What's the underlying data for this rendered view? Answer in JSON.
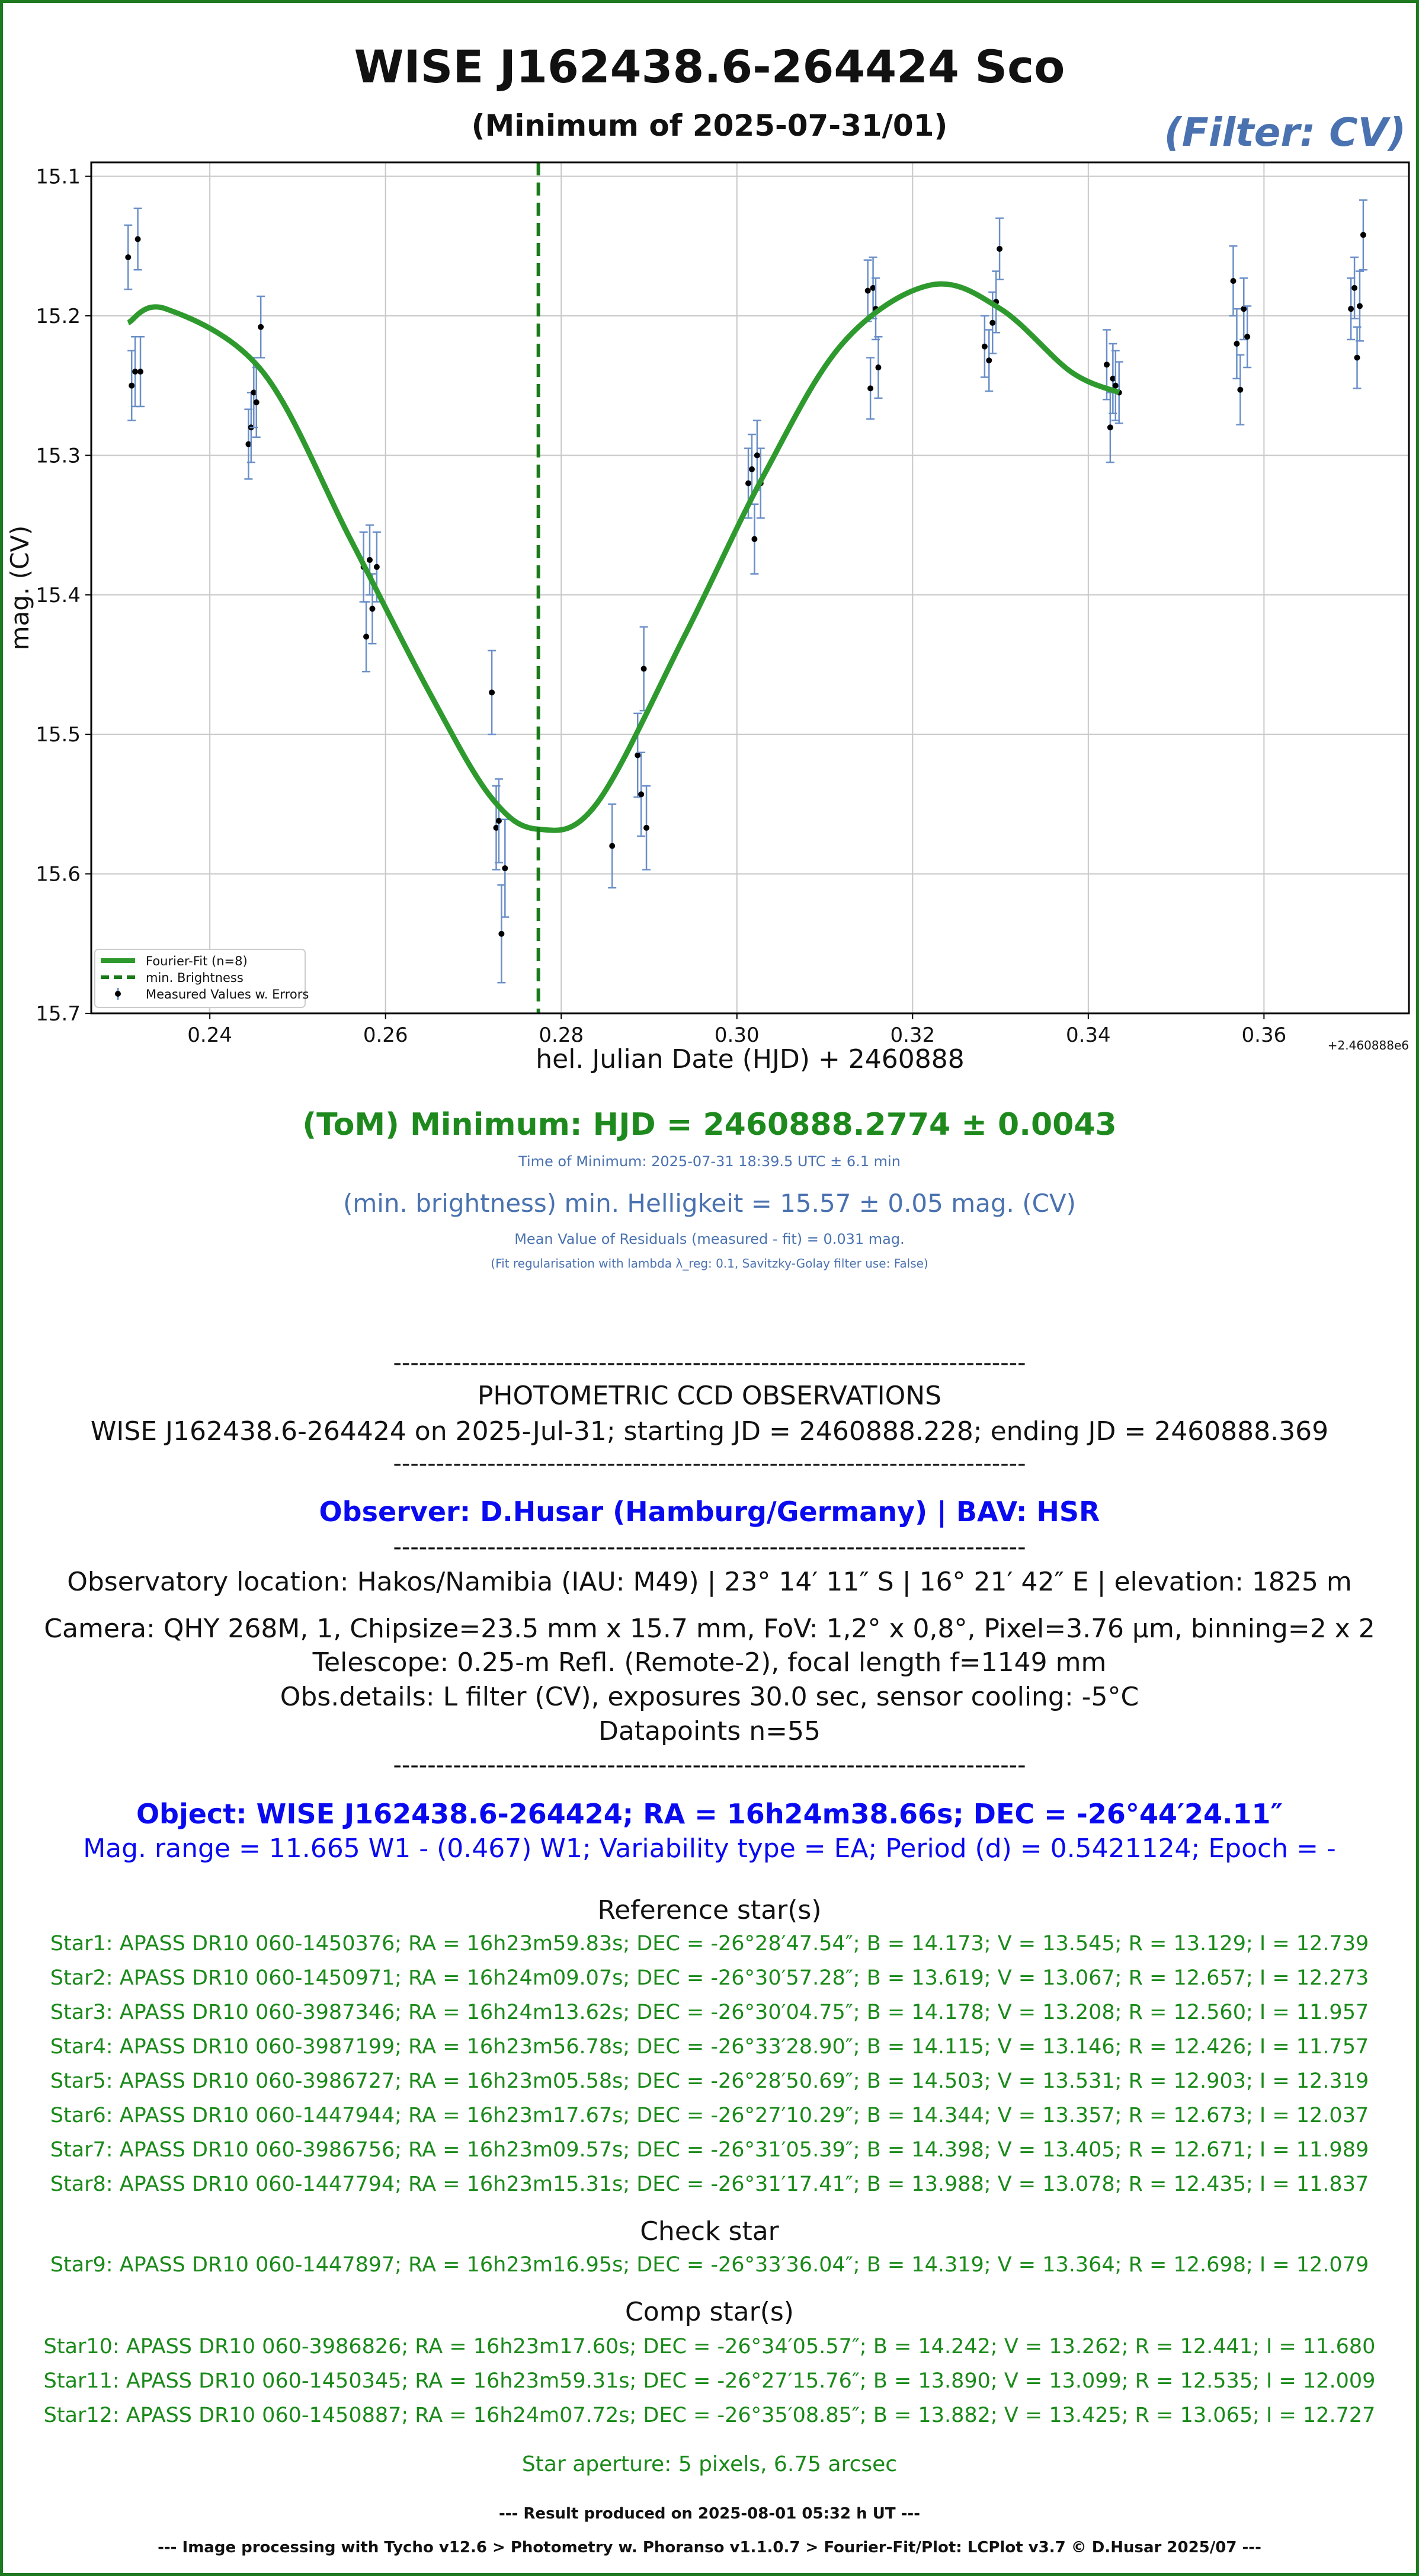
{
  "header": {
    "title": "WISE J162438.6-264424 Sco",
    "subtitle": "(Minimum of 2025-07-31/01)",
    "filter": "(Filter: CV)"
  },
  "chart_data": {
    "type": "scatter",
    "xlabel": "hel. Julian Date (HJD) + 2460888",
    "ylabel": "mag. (CV)",
    "offset_label": "+2.460888e6",
    "xlim": [
      0.2265,
      0.3765
    ],
    "ylim": [
      15.7,
      15.09
    ],
    "xticks": [
      0.24,
      0.26,
      0.28,
      0.3,
      0.32,
      0.34,
      0.36
    ],
    "xtick_labels": [
      "0.24",
      "0.26",
      "0.28",
      "0.30",
      "0.32",
      "0.34",
      "0.36"
    ],
    "yticks": [
      15.1,
      15.2,
      15.3,
      15.4,
      15.5,
      15.6,
      15.7
    ],
    "ytick_labels": [
      "15.1",
      "15.2",
      "15.3",
      "15.4",
      "15.5",
      "15.6",
      "15.7"
    ],
    "grid": true,
    "legend_position": "bottom-left",
    "minimum_x": 0.2774,
    "legend": [
      "Fourier-Fit (n=8)",
      "min. Brightness",
      "Measured Values w. Errors"
    ],
    "colors": {
      "fit": "#2e9a2e",
      "min": "#1a7a1a",
      "points": "#000000",
      "errors": "#6a8fc8"
    },
    "points": [
      [
        0.2307,
        15.158,
        0.023
      ],
      [
        0.2311,
        15.25,
        0.025
      ],
      [
        0.2315,
        15.24,
        0.025
      ],
      [
        0.2318,
        15.145,
        0.022
      ],
      [
        0.2321,
        15.24,
        0.025
      ],
      [
        0.2444,
        15.292,
        0.025
      ],
      [
        0.2447,
        15.28,
        0.025
      ],
      [
        0.245,
        15.255,
        0.025
      ],
      [
        0.2453,
        15.262,
        0.025
      ],
      [
        0.2458,
        15.208,
        0.022
      ],
      [
        0.2575,
        15.38,
        0.025
      ],
      [
        0.2578,
        15.43,
        0.025
      ],
      [
        0.2582,
        15.375,
        0.025
      ],
      [
        0.2585,
        15.41,
        0.025
      ],
      [
        0.259,
        15.38,
        0.025
      ],
      [
        0.2721,
        15.47,
        0.03
      ],
      [
        0.2726,
        15.567,
        0.03
      ],
      [
        0.2729,
        15.562,
        0.03
      ],
      [
        0.2732,
        15.643,
        0.035
      ],
      [
        0.2736,
        15.596,
        0.035
      ],
      [
        0.2858,
        15.58,
        0.03
      ],
      [
        0.2887,
        15.515,
        0.03
      ],
      [
        0.2891,
        15.543,
        0.03
      ],
      [
        0.2894,
        15.453,
        0.03
      ],
      [
        0.2897,
        15.567,
        0.03
      ],
      [
        0.3013,
        15.32,
        0.025
      ],
      [
        0.3017,
        15.31,
        0.025
      ],
      [
        0.302,
        15.36,
        0.025
      ],
      [
        0.3023,
        15.3,
        0.025
      ],
      [
        0.3027,
        15.32,
        0.025
      ],
      [
        0.3149,
        15.182,
        0.022
      ],
      [
        0.3152,
        15.252,
        0.022
      ],
      [
        0.3155,
        15.18,
        0.022
      ],
      [
        0.3158,
        15.195,
        0.022
      ],
      [
        0.3161,
        15.237,
        0.022
      ],
      [
        0.3282,
        15.222,
        0.022
      ],
      [
        0.3287,
        15.232,
        0.022
      ],
      [
        0.3291,
        15.205,
        0.022
      ],
      [
        0.3295,
        15.19,
        0.022
      ],
      [
        0.3299,
        15.152,
        0.022
      ],
      [
        0.3421,
        15.235,
        0.025
      ],
      [
        0.3425,
        15.28,
        0.025
      ],
      [
        0.3428,
        15.245,
        0.025
      ],
      [
        0.3431,
        15.25,
        0.025
      ],
      [
        0.3435,
        15.255,
        0.022
      ],
      [
        0.3565,
        15.175,
        0.025
      ],
      [
        0.3569,
        15.22,
        0.025
      ],
      [
        0.3573,
        15.253,
        0.025
      ],
      [
        0.3577,
        15.195,
        0.022
      ],
      [
        0.3581,
        15.215,
        0.022
      ],
      [
        0.3699,
        15.195,
        0.022
      ],
      [
        0.3703,
        15.18,
        0.022
      ],
      [
        0.3706,
        15.23,
        0.022
      ],
      [
        0.3709,
        15.193,
        0.025
      ],
      [
        0.3713,
        15.142,
        0.025
      ]
    ]
  },
  "results": {
    "minimum": "(ToM) Minimum: HJD = 2460888.2774 ± 0.0043",
    "time_of_minimum": "Time of Minimum:   2025-07-31   18:39.5 UTC ± 6.1 min",
    "min_brightness": "(min. brightness) min. Helligkeit = 15.57 ± 0.05 mag. (CV)",
    "residuals": "Mean Value of Residuals (measured - fit) = 0.031 mag.",
    "regularisation": "(Fit regularisation with lambda λ_reg: 0.1, Savitzky-Golay filter use: False)"
  },
  "observations": {
    "separator": "--------------------------------------------------------------------------",
    "heading": "PHOTOMETRIC CCD OBSERVATIONS",
    "range_line": "WISE J162438.6-264424 on 2025-Jul-31; starting JD = 2460888.228; ending JD = 2460888.369",
    "observer": "Observer: D.Husar (Hamburg/Germany) | BAV: HSR",
    "location": "Observatory location: Hakos/Namibia (IAU: M49) | 23° 14′ 11″ S | 16° 21′ 42″ E | elevation: 1825 m",
    "camera": "Camera: QHY 268M, 1, Chipsize=23.5 mm x 15.7 mm, FoV: 1,2° x 0,8°, Pixel=3.76 µm, binning=2 x 2",
    "telescope": "Telescope: 0.25-m Refl. (Remote-2), focal length f=1149 mm",
    "details": "Obs.details: L filter (CV), exposures 30.0 sec, sensor cooling: -5°C",
    "datapoints": "Datapoints n=55"
  },
  "object": {
    "line1": "Object: WISE J162438.6-264424; RA = 16h24m38.66s; DEC = -26°44′24.11″",
    "line2": "Mag. range = 11.665 W1 - (0.467) W1; Variability type = EA; Period (d) = 0.5421124; Epoch = -"
  },
  "reference_heading": "Reference star(s)",
  "reference_stars": [
    "Star1: APASS DR10 060-1450376; RA = 16h23m59.83s; DEC = -26°28′47.54″; B = 14.173; V = 13.545; R = 13.129; I = 12.739",
    "Star2: APASS DR10 060-1450971; RA = 16h24m09.07s; DEC = -26°30′57.28″; B = 13.619; V = 13.067; R = 12.657; I = 12.273",
    "Star3: APASS DR10 060-3987346; RA = 16h24m13.62s; DEC = -26°30′04.75″; B = 14.178; V = 13.208; R = 12.560; I = 11.957",
    "Star4: APASS DR10 060-3987199; RA = 16h23m56.78s; DEC = -26°33′28.90″; B = 14.115; V = 13.146; R = 12.426; I = 11.757",
    "Star5: APASS DR10 060-3986727; RA = 16h23m05.58s; DEC = -26°28′50.69″; B = 14.503; V = 13.531; R = 12.903; I = 12.319",
    "Star6: APASS DR10 060-1447944; RA = 16h23m17.67s; DEC = -26°27′10.29″; B = 14.344; V = 13.357; R = 12.673; I = 12.037",
    "Star7: APASS DR10 060-3986756; RA = 16h23m09.57s; DEC = -26°31′05.39″; B = 14.398; V = 13.405; R = 12.671; I = 11.989",
    "Star8: APASS DR10 060-1447794; RA = 16h23m15.31s; DEC = -26°31′17.41″; B = 13.988; V = 13.078; R = 12.435; I = 11.837"
  ],
  "check_heading": "Check star",
  "check_stars": [
    "Star9: APASS DR10 060-1447897; RA = 16h23m16.95s; DEC = -26°33′36.04″; B = 14.319; V = 13.364; R = 12.698; I = 12.079"
  ],
  "comp_heading": "Comp star(s)",
  "comp_stars": [
    "Star10: APASS DR10 060-3986826; RA = 16h23m17.60s; DEC = -26°34′05.57″; B = 14.242; V = 13.262; R = 12.441; I = 11.680",
    "Star11: APASS DR10 060-1450345; RA = 16h23m59.31s; DEC = -26°27′15.76″; B = 13.890; V = 13.099; R = 12.535; I = 12.009",
    "Star12: APASS DR10 060-1450887; RA = 16h24m07.72s; DEC = -26°35′08.85″; B = 13.882; V = 13.425; R = 13.065; I = 12.727"
  ],
  "aperture": "Star aperture: 5 pixels, 6.75 arcsec",
  "footer": {
    "result": "--- Result produced on 2025-08-01 05:32 h UT ---",
    "processing": "--- Image processing with Tycho v12.6 > Photometry w. Phoranso v1.1.0.7 > Fourier-Fit/Plot: LCPlot v3.7 © D.Husar 2025/07 ---"
  }
}
